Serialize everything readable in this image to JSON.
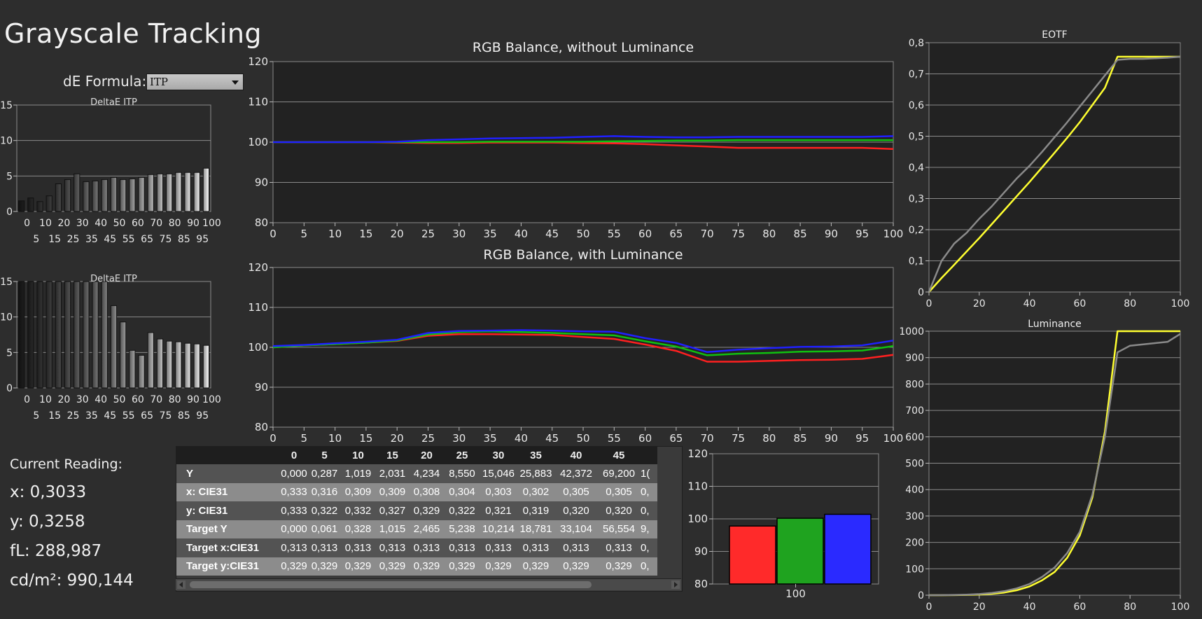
{
  "title": "Grayscale Tracking",
  "formula": {
    "label": "dE Formula:",
    "value": "ITP"
  },
  "current_reading": {
    "heading": "Current Reading:",
    "x": "x: 0,3033",
    "y": "y: 0,3258",
    "fl": "fL: 288,987",
    "cd": "cd/m²: 990,144"
  },
  "table": {
    "columns": [
      "0",
      "5",
      "10",
      "15",
      "20",
      "25",
      "30",
      "35",
      "40",
      "45"
    ],
    "rows": [
      {
        "label": "Y",
        "values": [
          "0,000",
          "0,287",
          "1,019",
          "2,031",
          "4,234",
          "8,550",
          "15,046",
          "25,883",
          "42,372",
          "69,200"
        ],
        "partial": "1("
      },
      {
        "label": "x: CIE31",
        "values": [
          "0,333",
          "0,316",
          "0,309",
          "0,309",
          "0,308",
          "0,304",
          "0,303",
          "0,302",
          "0,305",
          "0,305"
        ],
        "partial": "0,"
      },
      {
        "label": "y: CIE31",
        "values": [
          "0,333",
          "0,322",
          "0,332",
          "0,327",
          "0,329",
          "0,322",
          "0,321",
          "0,319",
          "0,320",
          "0,320"
        ],
        "partial": "0,"
      },
      {
        "label": "Target Y",
        "values": [
          "0,000",
          "0,061",
          "0,328",
          "1,015",
          "2,465",
          "5,238",
          "10,214",
          "18,781",
          "33,104",
          "56,554"
        ],
        "partial": "9,"
      },
      {
        "label": "Target x:CIE31",
        "values": [
          "0,313",
          "0,313",
          "0,313",
          "0,313",
          "0,313",
          "0,313",
          "0,313",
          "0,313",
          "0,313",
          "0,313"
        ],
        "partial": "0,"
      },
      {
        "label": "Target y:CIE31",
        "values": [
          "0,329",
          "0,329",
          "0,329",
          "0,329",
          "0,329",
          "0,329",
          "0,329",
          "0,329",
          "0,329",
          "0,329"
        ],
        "partial": "0,"
      }
    ]
  },
  "chart_data": [
    {
      "id": "deltae1",
      "type": "bar",
      "title": "DeltaE ITP",
      "categories": [
        0,
        5,
        10,
        15,
        20,
        25,
        30,
        35,
        40,
        45,
        50,
        55,
        60,
        65,
        70,
        75,
        80,
        85,
        90,
        95,
        100
      ],
      "values": [
        1.5,
        1.9,
        1.4,
        2.2,
        3.9,
        4.5,
        5.3,
        4.2,
        4.3,
        4.5,
        4.8,
        4.5,
        4.6,
        4.8,
        5.2,
        5.3,
        5.3,
        5.5,
        5.5,
        5.5,
        6.1
      ],
      "ylim": [
        0,
        15
      ],
      "yticks": [
        0,
        5,
        10,
        15
      ],
      "xticks_top": [
        "0",
        "10",
        "20",
        "30",
        "40",
        "50",
        "60",
        "70",
        "80",
        "90",
        "100"
      ],
      "xticks_bottom": [
        "5",
        "15",
        "25",
        "35",
        "45",
        "55",
        "65",
        "75",
        "85",
        "95"
      ]
    },
    {
      "id": "deltae2",
      "type": "bar",
      "title": "DeltaE ITP",
      "categories": [
        0,
        5,
        10,
        15,
        20,
        25,
        30,
        35,
        40,
        45,
        50,
        55,
        60,
        65,
        70,
        75,
        80,
        85,
        90,
        95,
        100
      ],
      "values": [
        15,
        15,
        15,
        15,
        15,
        15,
        15,
        15,
        15,
        15,
        11.6,
        9.3,
        5.3,
        4.6,
        7.8,
        6.9,
        6.6,
        6.5,
        6.3,
        6.2,
        6.0
      ],
      "ylim": [
        0,
        15
      ],
      "yticks": [
        0,
        5,
        10,
        15
      ],
      "xticks_top": [
        "0",
        "10",
        "20",
        "30",
        "40",
        "50",
        "60",
        "70",
        "80",
        "90",
        "100"
      ],
      "xticks_bottom": [
        "5",
        "15",
        "25",
        "35",
        "45",
        "55",
        "65",
        "75",
        "85",
        "95"
      ]
    },
    {
      "id": "rgb1",
      "type": "line",
      "title": "RGB Balance, without Luminance",
      "x": [
        0,
        5,
        10,
        15,
        20,
        25,
        30,
        35,
        40,
        45,
        50,
        55,
        60,
        65,
        70,
        75,
        80,
        85,
        90,
        95,
        100
      ],
      "series": [
        {
          "color": "#ff2020",
          "values": [
            100,
            100,
            100,
            100,
            99.9,
            99.8,
            99.8,
            99.9,
            99.9,
            99.9,
            99.8,
            99.7,
            99.5,
            99.2,
            98.9,
            98.6,
            98.6,
            98.6,
            98.6,
            98.6,
            98.3
          ]
        },
        {
          "color": "#10c010",
          "values": [
            100,
            100,
            100,
            100,
            100,
            100,
            100,
            100.1,
            100.1,
            100.1,
            100.1,
            100.2,
            100.3,
            100.4,
            100.4,
            100.5,
            100.5,
            100.5,
            100.5,
            100.5,
            100.5
          ]
        },
        {
          "color": "#2020ff",
          "values": [
            100,
            100,
            100,
            100,
            100.1,
            100.5,
            100.7,
            100.9,
            101,
            101.1,
            101.3,
            101.5,
            101.3,
            101.2,
            101.2,
            101.3,
            101.3,
            101.3,
            101.3,
            101.3,
            101.5
          ]
        }
      ],
      "ylim": [
        80,
        120
      ],
      "yticks": [
        80,
        90,
        100,
        110,
        120
      ],
      "xticks": [
        0,
        5,
        10,
        15,
        20,
        25,
        30,
        35,
        40,
        45,
        50,
        55,
        60,
        65,
        70,
        75,
        80,
        85,
        90,
        95,
        100
      ]
    },
    {
      "id": "rgb2",
      "type": "line",
      "title": "RGB Balance, with Luminance",
      "x": [
        0,
        5,
        10,
        15,
        20,
        25,
        30,
        35,
        40,
        45,
        50,
        55,
        60,
        65,
        70,
        75,
        80,
        85,
        90,
        95,
        100
      ],
      "series": [
        {
          "color": "#ff2020",
          "values": [
            100,
            100.5,
            100.8,
            101.2,
            101.6,
            102.9,
            103.3,
            103.3,
            103.2,
            103.1,
            102.6,
            102.1,
            100.7,
            99.1,
            96.4,
            96.4,
            96.6,
            96.8,
            96.9,
            97.1,
            98.1
          ]
        },
        {
          "color": "#10c010",
          "values": [
            100,
            100.5,
            100.8,
            101.2,
            101.7,
            103.2,
            103.8,
            104,
            103.8,
            103.6,
            103.3,
            103,
            101.5,
            100.2,
            98,
            98.4,
            98.6,
            98.9,
            99,
            99.2,
            100.3
          ]
        },
        {
          "color": "#2020ff",
          "values": [
            100.3,
            100.6,
            101,
            101.4,
            101.9,
            103.6,
            104.1,
            104.2,
            104.3,
            104.2,
            104,
            103.9,
            102.3,
            101.1,
            98.8,
            99.4,
            99.8,
            100.1,
            100.2,
            100.5,
            101.7
          ]
        }
      ],
      "ylim": [
        80,
        120
      ],
      "yticks": [
        80,
        90,
        100,
        110,
        120
      ],
      "xticks": [
        0,
        5,
        10,
        15,
        20,
        25,
        30,
        35,
        40,
        45,
        50,
        55,
        60,
        65,
        70,
        75,
        80,
        85,
        90,
        95,
        100
      ]
    },
    {
      "id": "rgbbars",
      "type": "bar",
      "categories": [
        "100"
      ],
      "series": [
        {
          "color": "#ff2a2a",
          "values": [
            97.8
          ]
        },
        {
          "color": "#1fa31f",
          "values": [
            100.2
          ]
        },
        {
          "color": "#2a2aff",
          "values": [
            101.4
          ]
        }
      ],
      "ylim": [
        80,
        120
      ],
      "yticks": [
        80,
        90,
        100,
        110,
        120
      ]
    },
    {
      "id": "eotf",
      "type": "line",
      "title": "EOTF",
      "series": [
        {
          "color": "#ffff30",
          "x": [
            0,
            5,
            10,
            15,
            20,
            25,
            30,
            35,
            40,
            45,
            50,
            55,
            60,
            65,
            70,
            75,
            80,
            85,
            90,
            95,
            100
          ],
          "values": [
            0,
            0.045,
            0.087,
            0.13,
            0.173,
            0.218,
            0.263,
            0.308,
            0.353,
            0.4,
            0.447,
            0.495,
            0.545,
            0.6,
            0.655,
            0.755,
            0.755,
            0.755,
            0.755,
            0.755,
            0.755
          ]
        },
        {
          "color": "#8a8a8a",
          "x": [
            0,
            5,
            10,
            15,
            20,
            25,
            30,
            35,
            40,
            45,
            50,
            55,
            60,
            65,
            70,
            75,
            80,
            85,
            90,
            95,
            100
          ],
          "values": [
            0,
            0.1,
            0.155,
            0.19,
            0.235,
            0.275,
            0.32,
            0.365,
            0.405,
            0.45,
            0.497,
            0.545,
            0.595,
            0.645,
            0.695,
            0.745,
            0.748,
            0.748,
            0.75,
            0.752,
            0.755
          ]
        }
      ],
      "xlim": [
        0,
        100
      ],
      "ylim": [
        0,
        0.8
      ],
      "yticks": [
        0,
        0.1,
        0.2,
        0.3,
        0.4,
        0.5,
        0.6,
        0.7,
        0.8
      ],
      "ytick_labels": [
        "0",
        "0,1",
        "0,2",
        "0,3",
        "0,4",
        "0,5",
        "0,6",
        "0,7",
        "0,8"
      ],
      "xticks": [
        0,
        20,
        40,
        60,
        80,
        100
      ]
    },
    {
      "id": "lum",
      "type": "line",
      "title": "Luminance",
      "series": [
        {
          "color": "#ffff30",
          "x": [
            0,
            5,
            10,
            15,
            20,
            25,
            30,
            35,
            40,
            45,
            50,
            55,
            60,
            65,
            70,
            75,
            80,
            85,
            90,
            95,
            100
          ],
          "values": [
            0,
            0.06,
            0.33,
            1.0,
            2.5,
            5.2,
            10.2,
            18.8,
            33.1,
            56.6,
            88,
            142,
            226,
            370,
            620,
            1000,
            1000,
            1000,
            1000,
            1000,
            1000
          ]
        },
        {
          "color": "#8a8a8a",
          "x": [
            0,
            5,
            10,
            15,
            20,
            25,
            30,
            35,
            40,
            45,
            50,
            55,
            60,
            65,
            70,
            75,
            80,
            85,
            90,
            95,
            100
          ],
          "values": [
            0,
            0.29,
            1.0,
            2.0,
            4.2,
            8.6,
            15,
            25.9,
            42.4,
            69.2,
            105,
            160,
            240,
            380,
            600,
            920,
            945,
            950,
            955,
            960,
            990
          ]
        }
      ],
      "xlim": [
        0,
        100
      ],
      "ylim": [
        0,
        1000
      ],
      "yticks": [
        0,
        100,
        200,
        300,
        400,
        500,
        600,
        700,
        800,
        900,
        1000
      ],
      "xticks": [
        0,
        20,
        40,
        60,
        80,
        100
      ]
    }
  ]
}
